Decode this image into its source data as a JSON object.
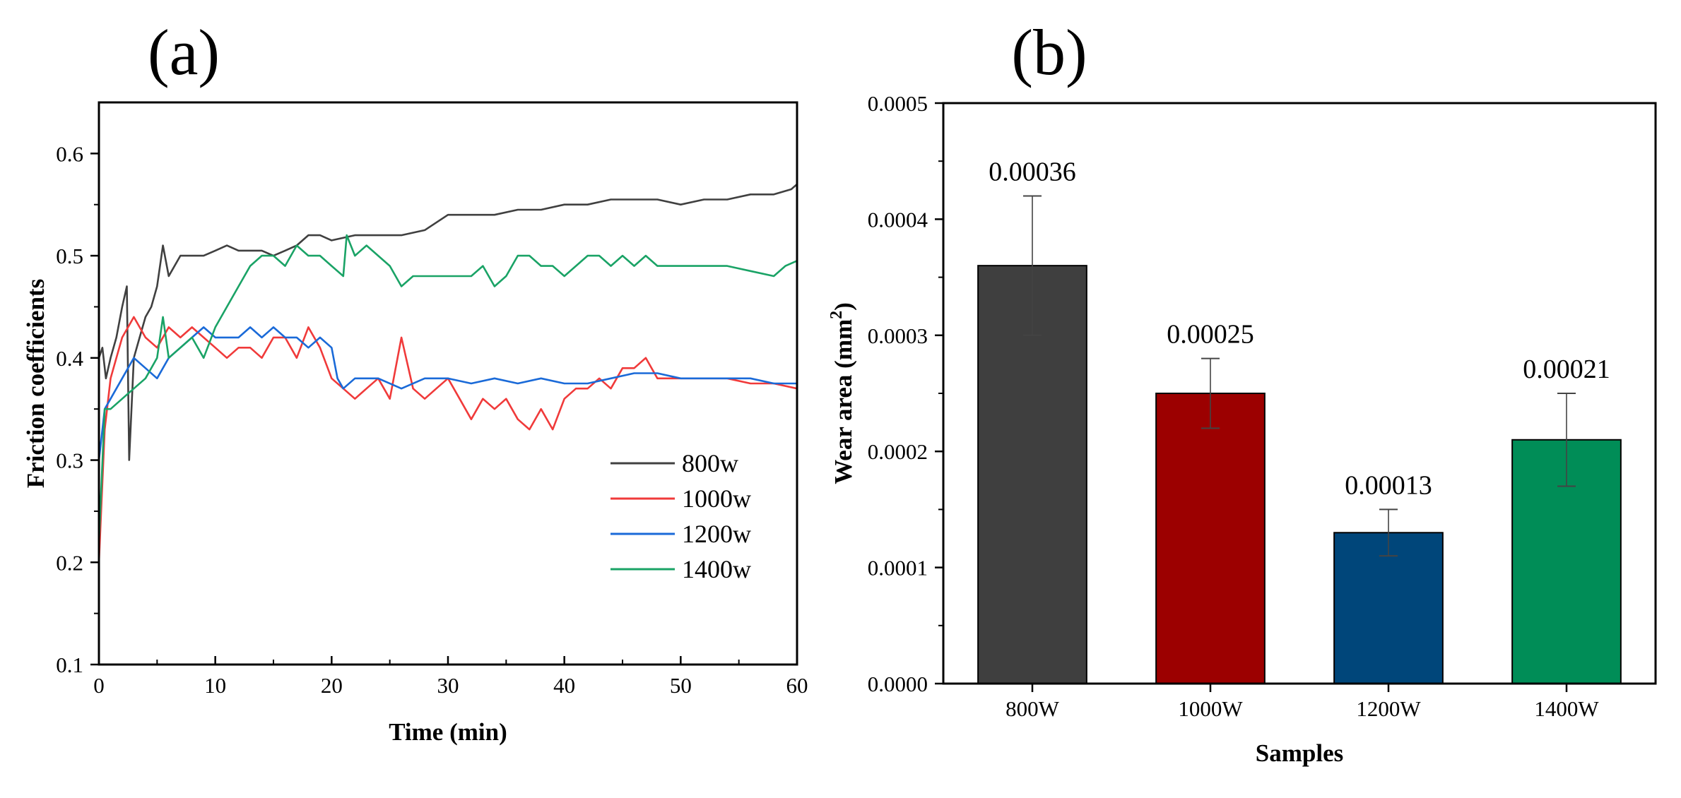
{
  "panel_a_label": "(a)",
  "panel_b_label": "(b)",
  "chart_data": [
    {
      "type": "line",
      "panel": "(a)",
      "xlabel": "Time (min)",
      "ylabel": "Friction coefficients",
      "xlim": [
        0,
        60
      ],
      "ylim": [
        0.1,
        0.65
      ],
      "xticks": [
        0,
        10,
        20,
        30,
        40,
        50,
        60
      ],
      "yticks": [
        0.1,
        0.2,
        0.3,
        0.4,
        0.5,
        0.6
      ],
      "xtick_labels": [
        "0",
        "10",
        "20",
        "30",
        "40",
        "50",
        "60"
      ],
      "ytick_labels": [
        "0.1",
        "0.2",
        "0.3",
        "0.4",
        "0.5",
        "0.6"
      ],
      "legend_position": "lower-right",
      "series": [
        {
          "name": "800w",
          "color": "#404040",
          "points": [
            [
              0,
              0.4
            ],
            [
              0.3,
              0.41
            ],
            [
              0.6,
              0.38
            ],
            [
              1,
              0.4
            ],
            [
              1.5,
              0.42
            ],
            [
              2,
              0.45
            ],
            [
              2.4,
              0.47
            ],
            [
              2.6,
              0.3
            ],
            [
              3,
              0.4
            ],
            [
              3.5,
              0.42
            ],
            [
              4,
              0.44
            ],
            [
              4.5,
              0.45
            ],
            [
              5,
              0.47
            ],
            [
              5.5,
              0.51
            ],
            [
              6,
              0.48
            ],
            [
              7,
              0.5
            ],
            [
              8,
              0.5
            ],
            [
              9,
              0.5
            ],
            [
              10,
              0.505
            ],
            [
              11,
              0.51
            ],
            [
              12,
              0.505
            ],
            [
              13,
              0.505
            ],
            [
              14,
              0.505
            ],
            [
              15,
              0.5
            ],
            [
              16,
              0.505
            ],
            [
              17,
              0.51
            ],
            [
              18,
              0.52
            ],
            [
              19,
              0.52
            ],
            [
              20,
              0.515
            ],
            [
              22,
              0.52
            ],
            [
              24,
              0.52
            ],
            [
              26,
              0.52
            ],
            [
              28,
              0.525
            ],
            [
              30,
              0.54
            ],
            [
              32,
              0.54
            ],
            [
              34,
              0.54
            ],
            [
              36,
              0.545
            ],
            [
              38,
              0.545
            ],
            [
              40,
              0.55
            ],
            [
              42,
              0.55
            ],
            [
              44,
              0.555
            ],
            [
              46,
              0.555
            ],
            [
              48,
              0.555
            ],
            [
              50,
              0.55
            ],
            [
              52,
              0.555
            ],
            [
              54,
              0.555
            ],
            [
              56,
              0.56
            ],
            [
              58,
              0.56
            ],
            [
              59.5,
              0.565
            ],
            [
              60,
              0.57
            ]
          ]
        },
        {
          "name": "1000w",
          "color": "#f03a3a",
          "points": [
            [
              0,
              0.2
            ],
            [
              0.5,
              0.33
            ],
            [
              1,
              0.38
            ],
            [
              1.5,
              0.4
            ],
            [
              2,
              0.42
            ],
            [
              2.5,
              0.43
            ],
            [
              3,
              0.44
            ],
            [
              4,
              0.42
            ],
            [
              5,
              0.41
            ],
            [
              6,
              0.43
            ],
            [
              7,
              0.42
            ],
            [
              8,
              0.43
            ],
            [
              9,
              0.42
            ],
            [
              10,
              0.41
            ],
            [
              11,
              0.4
            ],
            [
              12,
              0.41
            ],
            [
              13,
              0.41
            ],
            [
              14,
              0.4
            ],
            [
              15,
              0.42
            ],
            [
              16,
              0.42
            ],
            [
              17,
              0.4
            ],
            [
              18,
              0.43
            ],
            [
              19,
              0.41
            ],
            [
              20,
              0.38
            ],
            [
              21,
              0.37
            ],
            [
              22,
              0.36
            ],
            [
              23,
              0.37
            ],
            [
              24,
              0.38
            ],
            [
              25,
              0.36
            ],
            [
              26,
              0.42
            ],
            [
              27,
              0.37
            ],
            [
              28,
              0.36
            ],
            [
              29,
              0.37
            ],
            [
              30,
              0.38
            ],
            [
              31,
              0.36
            ],
            [
              32,
              0.34
            ],
            [
              33,
              0.36
            ],
            [
              34,
              0.35
            ],
            [
              35,
              0.36
            ],
            [
              36,
              0.34
            ],
            [
              37,
              0.33
            ],
            [
              38,
              0.35
            ],
            [
              39,
              0.33
            ],
            [
              40,
              0.36
            ],
            [
              41,
              0.37
            ],
            [
              42,
              0.37
            ],
            [
              43,
              0.38
            ],
            [
              44,
              0.37
            ],
            [
              45,
              0.39
            ],
            [
              46,
              0.39
            ],
            [
              47,
              0.4
            ],
            [
              48,
              0.38
            ],
            [
              50,
              0.38
            ],
            [
              52,
              0.38
            ],
            [
              54,
              0.38
            ],
            [
              56,
              0.375
            ],
            [
              58,
              0.375
            ],
            [
              60,
              0.37
            ]
          ]
        },
        {
          "name": "1200w",
          "color": "#1a6ad8",
          "points": [
            [
              0,
              0.3
            ],
            [
              0.5,
              0.35
            ],
            [
              1,
              0.36
            ],
            [
              2,
              0.38
            ],
            [
              3,
              0.4
            ],
            [
              4,
              0.39
            ],
            [
              5,
              0.38
            ],
            [
              6,
              0.4
            ],
            [
              7,
              0.41
            ],
            [
              8,
              0.42
            ],
            [
              9,
              0.43
            ],
            [
              10,
              0.42
            ],
            [
              11,
              0.42
            ],
            [
              12,
              0.42
            ],
            [
              13,
              0.43
            ],
            [
              14,
              0.42
            ],
            [
              15,
              0.43
            ],
            [
              16,
              0.42
            ],
            [
              17,
              0.42
            ],
            [
              18,
              0.41
            ],
            [
              19,
              0.42
            ],
            [
              20,
              0.41
            ],
            [
              20.5,
              0.38
            ],
            [
              21,
              0.37
            ],
            [
              22,
              0.38
            ],
            [
              24,
              0.38
            ],
            [
              26,
              0.37
            ],
            [
              28,
              0.38
            ],
            [
              30,
              0.38
            ],
            [
              32,
              0.375
            ],
            [
              34,
              0.38
            ],
            [
              36,
              0.375
            ],
            [
              38,
              0.38
            ],
            [
              40,
              0.375
            ],
            [
              42,
              0.375
            ],
            [
              44,
              0.38
            ],
            [
              46,
              0.385
            ],
            [
              48,
              0.385
            ],
            [
              50,
              0.38
            ],
            [
              52,
              0.38
            ],
            [
              54,
              0.38
            ],
            [
              56,
              0.38
            ],
            [
              58,
              0.375
            ],
            [
              60,
              0.375
            ]
          ]
        },
        {
          "name": "1400w",
          "color": "#1aa366",
          "points": [
            [
              0,
              0.22
            ],
            [
              0.5,
              0.35
            ],
            [
              1,
              0.35
            ],
            [
              2,
              0.36
            ],
            [
              3,
              0.37
            ],
            [
              4,
              0.38
            ],
            [
              5,
              0.4
            ],
            [
              5.5,
              0.44
            ],
            [
              6,
              0.4
            ],
            [
              7,
              0.41
            ],
            [
              8,
              0.42
            ],
            [
              9,
              0.4
            ],
            [
              10,
              0.43
            ],
            [
              11,
              0.45
            ],
            [
              12,
              0.47
            ],
            [
              13,
              0.49
            ],
            [
              14,
              0.5
            ],
            [
              15,
              0.5
            ],
            [
              16,
              0.49
            ],
            [
              17,
              0.51
            ],
            [
              18,
              0.5
            ],
            [
              19,
              0.5
            ],
            [
              20,
              0.49
            ],
            [
              21,
              0.48
            ],
            [
              21.3,
              0.52
            ],
            [
              22,
              0.5
            ],
            [
              23,
              0.51
            ],
            [
              24,
              0.5
            ],
            [
              25,
              0.49
            ],
            [
              26,
              0.47
            ],
            [
              27,
              0.48
            ],
            [
              28,
              0.48
            ],
            [
              30,
              0.48
            ],
            [
              32,
              0.48
            ],
            [
              33,
              0.49
            ],
            [
              34,
              0.47
            ],
            [
              35,
              0.48
            ],
            [
              36,
              0.5
            ],
            [
              37,
              0.5
            ],
            [
              38,
              0.49
            ],
            [
              39,
              0.49
            ],
            [
              40,
              0.48
            ],
            [
              41,
              0.49
            ],
            [
              42,
              0.5
            ],
            [
              43,
              0.5
            ],
            [
              44,
              0.49
            ],
            [
              45,
              0.5
            ],
            [
              46,
              0.49
            ],
            [
              47,
              0.5
            ],
            [
              48,
              0.49
            ],
            [
              50,
              0.49
            ],
            [
              52,
              0.49
            ],
            [
              54,
              0.49
            ],
            [
              56,
              0.485
            ],
            [
              58,
              0.48
            ],
            [
              59,
              0.49
            ],
            [
              60,
              0.495
            ]
          ]
        }
      ]
    },
    {
      "type": "bar",
      "panel": "(b)",
      "xlabel": "Samples",
      "ylabel_main": "Wear area (mm",
      "ylabel_sup": "2",
      "ylabel_end": ")",
      "ylim": [
        0,
        0.0005
      ],
      "yticks": [
        0,
        0.0001,
        0.0002,
        0.0003,
        0.0004,
        0.0005
      ],
      "ytick_labels": [
        "0.0000",
        "0.0001",
        "0.0002",
        "0.0003",
        "0.0004",
        "0.0005"
      ],
      "categories": [
        "800W",
        "1000W",
        "1200W",
        "1400W"
      ],
      "values": [
        0.00036,
        0.00025,
        0.00013,
        0.00021
      ],
      "error_low": [
        0.0003,
        0.00022,
        0.00011,
        0.00017
      ],
      "error_high": [
        0.00042,
        0.00028,
        0.00015,
        0.00025
      ],
      "value_labels": [
        "0.00036",
        "0.00025",
        "0.00013",
        "0.00021"
      ],
      "colors": [
        "#3f3f3f",
        "#9c0000",
        "#00467a",
        "#008d57"
      ]
    }
  ]
}
